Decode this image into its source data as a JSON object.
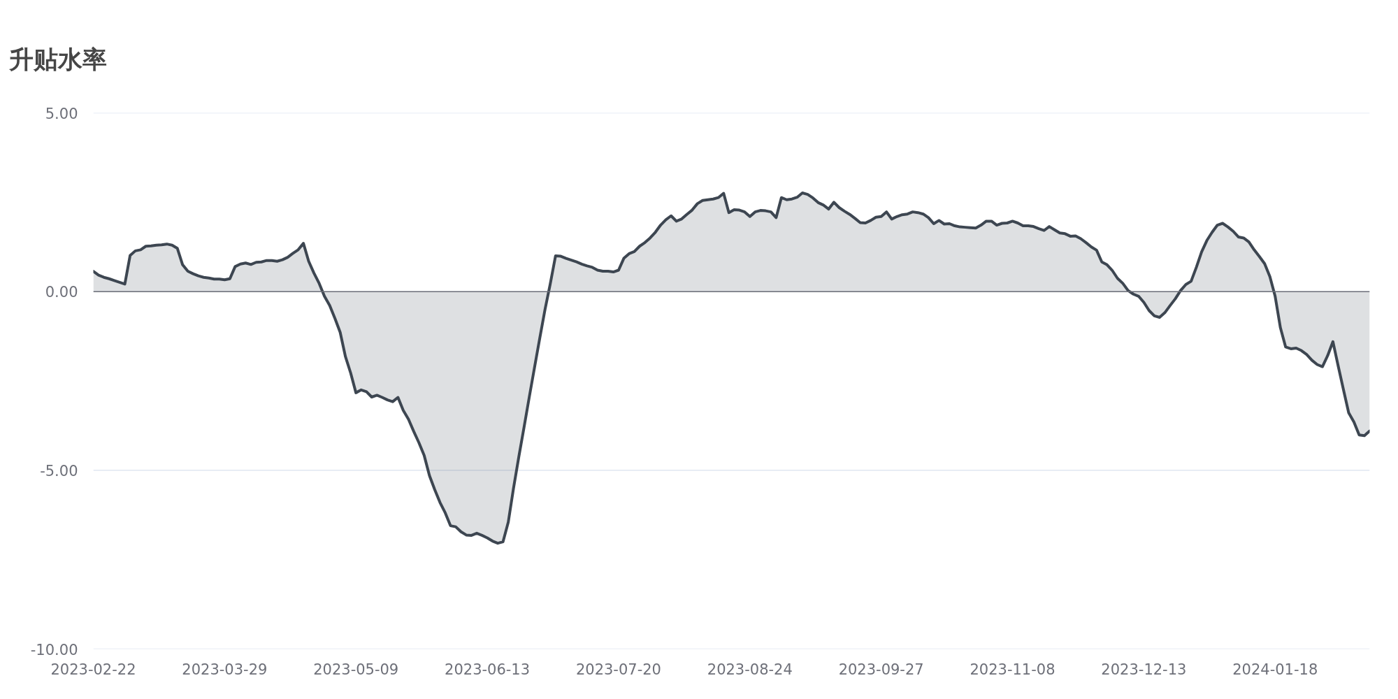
{
  "chart_data": {
    "type": "area",
    "title": "升贴水率",
    "categories": [
      "2023-02-22",
      null,
      null,
      null,
      null,
      null,
      null,
      null,
      null,
      null,
      null,
      null,
      null,
      null,
      null,
      null,
      null,
      null,
      null,
      null,
      null,
      null,
      null,
      null,
      null,
      "2023-03-29",
      null,
      null,
      null,
      null,
      null,
      null,
      null,
      null,
      null,
      null,
      null,
      null,
      null,
      null,
      null,
      null,
      null,
      null,
      null,
      null,
      null,
      null,
      null,
      null,
      "2023-05-09",
      null,
      null,
      null,
      null,
      null,
      null,
      null,
      null,
      null,
      null,
      null,
      null,
      null,
      null,
      null,
      null,
      null,
      null,
      null,
      null,
      null,
      null,
      null,
      null,
      "2023-06-13",
      null,
      null,
      null,
      null,
      null,
      null,
      null,
      null,
      null,
      null,
      null,
      null,
      null,
      null,
      null,
      null,
      null,
      null,
      null,
      null,
      null,
      null,
      null,
      null,
      "2023-07-20",
      null,
      null,
      null,
      null,
      null,
      null,
      null,
      null,
      null,
      null,
      null,
      null,
      null,
      null,
      null,
      null,
      null,
      null,
      null,
      null,
      null,
      null,
      null,
      null,
      "2023-08-24",
      null,
      null,
      null,
      null,
      null,
      null,
      null,
      null,
      null,
      null,
      null,
      null,
      null,
      null,
      null,
      null,
      null,
      null,
      null,
      null,
      null,
      null,
      null,
      null,
      "2023-09-27",
      null,
      null,
      null,
      null,
      null,
      null,
      null,
      null,
      null,
      null,
      null,
      null,
      null,
      null,
      null,
      null,
      null,
      null,
      null,
      null,
      null,
      null,
      null,
      null,
      "2023-11-08",
      null,
      null,
      null,
      null,
      null,
      null,
      null,
      null,
      null,
      null,
      null,
      null,
      null,
      null,
      null,
      null,
      null,
      null,
      null,
      null,
      null,
      null,
      null,
      null,
      "2023-12-13",
      null,
      null,
      null,
      null,
      null,
      null,
      null,
      null,
      null,
      null,
      null,
      null,
      null,
      null,
      null,
      null,
      null,
      null,
      null,
      null,
      null,
      null,
      null,
      null,
      "2024-01-18",
      null,
      null,
      null,
      null,
      null,
      null,
      null,
      null,
      null,
      null,
      null,
      null,
      null,
      null,
      null,
      null,
      null,
      null
    ],
    "series": [
      {
        "color": "#3d4651",
        "values": [
          0.57,
          0.46,
          0.4,
          0.36,
          0.31,
          0.26,
          0.21,
          1.01,
          1.14,
          1.17,
          1.27,
          1.28,
          1.3,
          1.31,
          1.33,
          1.3,
          1.21,
          0.75,
          0.57,
          0.5,
          0.44,
          0.4,
          0.38,
          0.35,
          0.35,
          0.33,
          0.36,
          0.7,
          0.77,
          0.8,
          0.76,
          0.82,
          0.83,
          0.87,
          0.87,
          0.85,
          0.89,
          0.96,
          1.07,
          1.17,
          1.35,
          0.85,
          0.52,
          0.23,
          -0.13,
          -0.39,
          -0.75,
          -1.14,
          -1.82,
          -2.28,
          -2.83,
          -2.75,
          -2.8,
          -2.95,
          -2.9,
          -2.96,
          -3.03,
          -3.08,
          -2.96,
          -3.32,
          -3.57,
          -3.91,
          -4.23,
          -4.59,
          -5.15,
          -5.54,
          -5.9,
          -6.19,
          -6.55,
          -6.58,
          -6.72,
          -6.81,
          -6.82,
          -6.76,
          -6.82,
          -6.89,
          -6.98,
          -7.04,
          -7.0,
          -6.45,
          -5.5,
          -4.63,
          -3.8,
          -2.95,
          -2.12,
          -1.3,
          -0.5,
          0.22,
          1.0,
          0.99,
          0.93,
          0.88,
          0.83,
          0.77,
          0.72,
          0.68,
          0.6,
          0.57,
          0.57,
          0.55,
          0.6,
          0.93,
          1.06,
          1.12,
          1.27,
          1.37,
          1.5,
          1.66,
          1.86,
          2.01,
          2.12,
          1.97,
          2.03,
          2.16,
          2.28,
          2.46,
          2.55,
          2.57,
          2.59,
          2.63,
          2.75,
          2.21,
          2.29,
          2.28,
          2.23,
          2.1,
          2.23,
          2.27,
          2.26,
          2.23,
          2.07,
          2.63,
          2.57,
          2.59,
          2.64,
          2.76,
          2.72,
          2.62,
          2.49,
          2.42,
          2.31,
          2.5,
          2.35,
          2.25,
          2.16,
          2.05,
          1.93,
          1.92,
          1.99,
          2.08,
          2.1,
          2.23,
          2.03,
          2.1,
          2.15,
          2.17,
          2.23,
          2.21,
          2.17,
          2.07,
          1.9,
          1.99,
          1.89,
          1.9,
          1.84,
          1.81,
          1.8,
          1.79,
          1.78,
          1.86,
          1.97,
          1.97,
          1.86,
          1.91,
          1.92,
          1.97,
          1.92,
          1.84,
          1.84,
          1.82,
          1.76,
          1.71,
          1.82,
          1.73,
          1.64,
          1.62,
          1.55,
          1.56,
          1.48,
          1.37,
          1.25,
          1.16,
          0.83,
          0.75,
          0.59,
          0.37,
          0.23,
          0.03,
          -0.07,
          -0.13,
          -0.3,
          -0.53,
          -0.68,
          -0.72,
          -0.59,
          -0.39,
          -0.2,
          0.03,
          0.2,
          0.29,
          0.68,
          1.11,
          1.43,
          1.66,
          1.86,
          1.91,
          1.81,
          1.69,
          1.53,
          1.5,
          1.39,
          1.17,
          0.98,
          0.78,
          0.42,
          -0.13,
          -1.01,
          -1.55,
          -1.6,
          -1.58,
          -1.65,
          -1.76,
          -1.92,
          -2.04,
          -2.1,
          -1.79,
          -1.4,
          -2.08,
          -2.74,
          -3.39,
          -3.65,
          -4.01,
          -4.03,
          -3.9
        ]
      }
    ],
    "ylim": [
      -10,
      5
    ],
    "yticks": [
      {
        "value": 5,
        "label": "5.00"
      },
      {
        "value": 0,
        "label": "0.00"
      },
      {
        "value": -5,
        "label": "-5.00"
      },
      {
        "value": -10,
        "label": "-10.00"
      }
    ],
    "grid": "y",
    "ref_lines": [
      {
        "axis": "y",
        "value": 0,
        "color": "#6e7079"
      }
    ]
  }
}
